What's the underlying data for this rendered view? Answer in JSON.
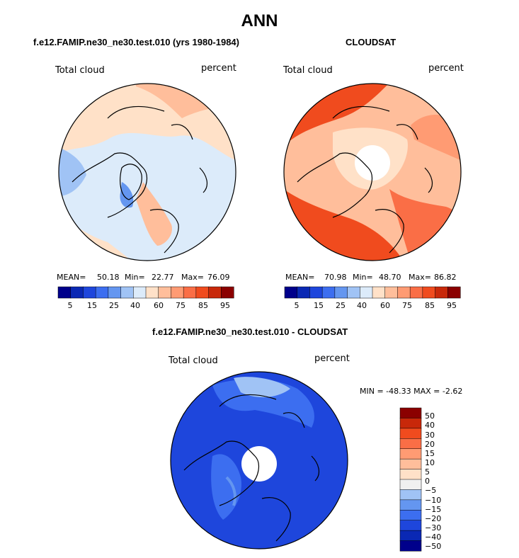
{
  "figure": {
    "title": "ANN"
  },
  "colors": {
    "palette": [
      "#00008b",
      "#0a28b4",
      "#1e46dc",
      "#3c6ef0",
      "#6496f0",
      "#a0c3f5",
      "#dcebfa",
      "#ffe1c8",
      "#ffbe9b",
      "#ff9b73",
      "#fa6e46",
      "#f04b1e",
      "#c8280a",
      "#8b0000"
    ],
    "diff_palette": [
      "#00008b",
      "#0a28b4",
      "#1e46dc",
      "#3c6ef0",
      "#6496f0",
      "#a0c3f5",
      "#f0f0f0",
      "#ffe1c8",
      "#ffbe9b",
      "#ff9b73",
      "#fa6e46",
      "#f04b1e",
      "#c8280a",
      "#8b0000"
    ]
  },
  "chart_data": [
    {
      "type": "heatmap",
      "projection": "north polar stereographic",
      "title": "f.e12.FAMIP.ne30_ne30.test.010 (yrs 1980-1984)",
      "left_label": "Total cloud",
      "right_label": "percent",
      "stats": {
        "mean_label": "MEAN=",
        "mean": "50.18",
        "min_label": "Min=",
        "min": "22.77",
        "max_label": "Max=",
        "max": "76.09"
      },
      "colorbar": {
        "levels": [
          5,
          10,
          15,
          20,
          25,
          30,
          40,
          50,
          60,
          70,
          75,
          80,
          85,
          90,
          95
        ],
        "tick_labels": [
          "5",
          "15",
          "25",
          "40",
          "60",
          "75",
          "85",
          "95"
        ]
      }
    },
    {
      "type": "heatmap",
      "projection": "north polar stereographic",
      "title": "CLOUDSAT",
      "left_label": "Total cloud",
      "right_label": "percent",
      "stats": {
        "mean_label": "MEAN=",
        "mean": "70.98",
        "min_label": "Min=",
        "min": "48.70",
        "max_label": "Max=",
        "max": "86.82"
      },
      "colorbar": {
        "levels": [
          5,
          10,
          15,
          20,
          25,
          30,
          40,
          50,
          60,
          70,
          75,
          80,
          85,
          90,
          95
        ],
        "tick_labels": [
          "5",
          "15",
          "25",
          "40",
          "60",
          "75",
          "85",
          "95"
        ]
      }
    },
    {
      "type": "heatmap",
      "projection": "north polar stereographic",
      "title": "f.e12.FAMIP.ne30_ne30.test.010 - CLOUDSAT",
      "left_label": "Total cloud",
      "right_label": "percent",
      "stats": {
        "min_text": "MIN = -48.33  MAX =  -2.62"
      },
      "colorbar": {
        "orientation": "vertical",
        "levels": [
          50,
          40,
          30,
          20,
          15,
          10,
          5,
          0,
          -5,
          -10,
          -15,
          -20,
          -30,
          -40,
          -50
        ],
        "tick_labels": [
          "50",
          "40",
          "30",
          "20",
          "15",
          "10",
          "5",
          "0",
          "−5",
          "−10",
          "−15",
          "−20",
          "−30",
          "−40",
          "−50"
        ]
      }
    }
  ]
}
